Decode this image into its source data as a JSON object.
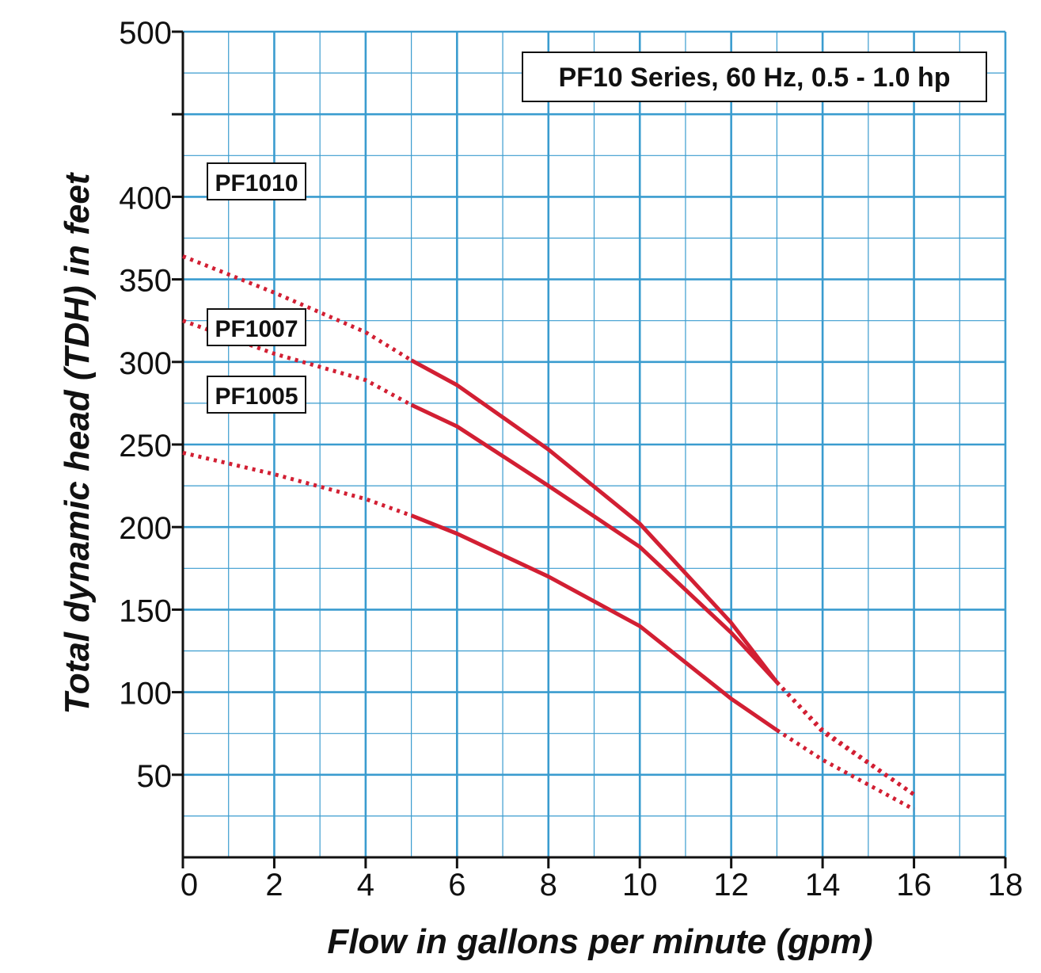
{
  "chart_data": {
    "type": "line",
    "title": "PF10 Series, 60 Hz, 0.5 - 1.0 hp",
    "xlabel": "Flow in gallons per minute (gpm)",
    "ylabel": "Total dynamic head (TDH) in feet",
    "xlim": [
      0,
      18
    ],
    "ylim": [
      0,
      500
    ],
    "x_ticks": [
      0,
      2,
      4,
      6,
      8,
      10,
      12,
      14,
      16,
      18
    ],
    "y_ticks": [
      50,
      100,
      150,
      200,
      250,
      300,
      350,
      400,
      450,
      500
    ],
    "y_tick_labels": [
      "50",
      "100",
      "150",
      "200",
      "250",
      "300",
      "350",
      "400",
      "",
      "500"
    ],
    "grid": true,
    "legend_position": "top-right",
    "line_color": "#d21f33",
    "grid_color": "#3a9ccf",
    "series": [
      {
        "name": "PF1010",
        "solid": [
          [
            5,
            301
          ],
          [
            6,
            286
          ],
          [
            8,
            247
          ],
          [
            10,
            202
          ],
          [
            12,
            142
          ],
          [
            13,
            106
          ]
        ],
        "dotted_start": [
          [
            0,
            364
          ],
          [
            2,
            342
          ],
          [
            4,
            318
          ],
          [
            5,
            301
          ]
        ],
        "dotted_end": [
          [
            13,
            106
          ],
          [
            14,
            77
          ],
          [
            16,
            38
          ]
        ]
      },
      {
        "name": "PF1007",
        "solid": [
          [
            5,
            274
          ],
          [
            6,
            261
          ],
          [
            8,
            225
          ],
          [
            10,
            188
          ],
          [
            12,
            136
          ],
          [
            13,
            106
          ]
        ],
        "dotted_start": [
          [
            0,
            325
          ],
          [
            2,
            305
          ],
          [
            4,
            289
          ],
          [
            5,
            274
          ]
        ],
        "dotted_end": [
          [
            13,
            106
          ],
          [
            14,
            76
          ],
          [
            16,
            38
          ]
        ]
      },
      {
        "name": "PF1005",
        "solid": [
          [
            5,
            207
          ],
          [
            6,
            196
          ],
          [
            8,
            170
          ],
          [
            10,
            140
          ],
          [
            12,
            96
          ],
          [
            13,
            77
          ]
        ],
        "dotted_start": [
          [
            0,
            245
          ],
          [
            2,
            232
          ],
          [
            4,
            217
          ],
          [
            5,
            207
          ]
        ],
        "dotted_end": [
          [
            13,
            77
          ],
          [
            14,
            59
          ],
          [
            16,
            29
          ]
        ]
      }
    ]
  }
}
